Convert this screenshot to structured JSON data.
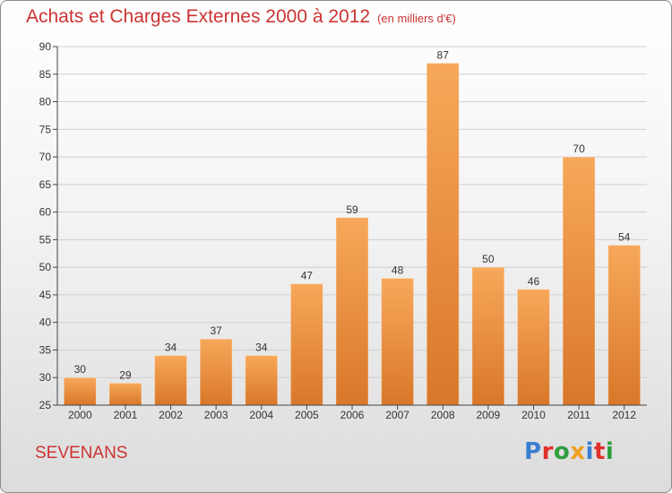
{
  "header": {
    "title": "Achats et Charges Externes 2000 à 2012",
    "unit": "(en milliers d'€)"
  },
  "footer": {
    "place": "SEVENANS",
    "logo_text": "Proxiti",
    "logo_colors": [
      "#3a7fd0",
      "#e0302c",
      "#2f9e3e",
      "#f0a020",
      "#3a7fd0",
      "#e0302c",
      "#2f9e3e"
    ]
  },
  "colors": {
    "bar_light": "#f7a85a",
    "bar_dark": "#d9772a",
    "grid": "#cfcfcf",
    "axis": "#444444",
    "text": "#333333"
  },
  "chart_data": {
    "type": "bar",
    "title": "Achats et Charges Externes 2000 à 2012",
    "subtitle": "(en milliers d'€)",
    "xlabel": "",
    "ylabel": "",
    "categories": [
      "2000",
      "2001",
      "2002",
      "2003",
      "2004",
      "2005",
      "2006",
      "2007",
      "2008",
      "2009",
      "2010",
      "2011",
      "2012"
    ],
    "values": [
      30,
      29,
      34,
      37,
      34,
      47,
      59,
      48,
      87,
      50,
      46,
      70,
      54
    ],
    "ylim": [
      25,
      90
    ],
    "yticks": [
      25,
      30,
      35,
      40,
      45,
      50,
      55,
      60,
      65,
      70,
      75,
      80,
      85,
      90
    ],
    "grid": true,
    "data_labels": true
  }
}
